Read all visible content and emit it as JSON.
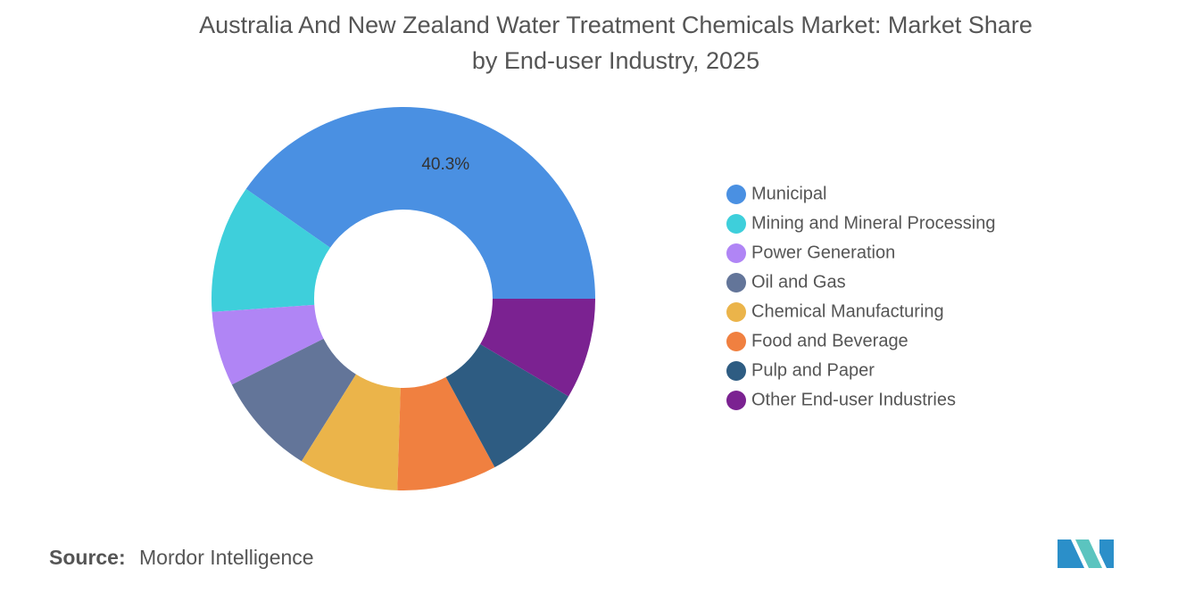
{
  "chart_data": {
    "type": "donut",
    "title": "Australia And New Zealand Water Treatment Chemicals Market: Market Share",
    "subtitle": "by End-user Industry, 2025",
    "categories": [
      "Municipal",
      "Mining and Mineral Processing",
      "Power Generation",
      "Oil and Gas",
      "Chemical Manufacturing",
      "Food and Beverage",
      "Pulp and Paper",
      "Other End-user Industries"
    ],
    "values": [
      40.3,
      10.8,
      6.3,
      8.7,
      8.4,
      8.4,
      8.6,
      8.5
    ],
    "value_labels": [
      "40.3%",
      null,
      null,
      null,
      null,
      null,
      null,
      null
    ],
    "colors": [
      "#4a90e2",
      "#3ecfdb",
      "#b085f5",
      "#637599",
      "#ebb44a",
      "#f08040",
      "#2e5c82",
      "#7b2291"
    ],
    "source_label": "Source:",
    "source": "Mordor Intelligence"
  }
}
